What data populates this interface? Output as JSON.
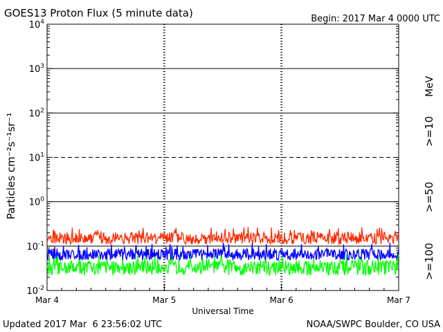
{
  "header": {
    "title": "GOES13 Proton Flux (5 minute data)",
    "begin": "Begin: 2017 Mar 4 0000 UTC"
  },
  "footer": {
    "updated": "Updated 2017 Mar  6 23:56:02 UTC",
    "credit": "NOAA/SWPC Boulder, CO USA"
  },
  "chart_data": {
    "type": "line",
    "title": "GOES13 Proton Flux (5 minute data)",
    "xlabel": "Universal Time",
    "ylabel": "Particles cm⁻²s⁻¹sr⁻¹",
    "y_scale": "log",
    "ylim": [
      0.01,
      10000
    ],
    "x_ticks": [
      "Mar 4",
      "Mar 5",
      "Mar 6",
      "Mar 7"
    ],
    "y_ticks": [
      {
        "base": "10",
        "exp": "4"
      },
      {
        "base": "10",
        "exp": "3"
      },
      {
        "base": "10",
        "exp": "2"
      },
      {
        "base": "10",
        "exp": "1"
      },
      {
        "base": "10",
        "exp": "0"
      },
      {
        "base": "10",
        "exp": "-1"
      },
      {
        "base": "10",
        "exp": "-2"
      }
    ],
    "thresholds": [
      {
        "value": 1000,
        "style": "solid"
      },
      {
        "value": 100,
        "style": "solid"
      },
      {
        "value": 10,
        "style": "dashed"
      },
      {
        "value": 1,
        "style": "solid"
      },
      {
        "value": 0.1,
        "style": "solid"
      }
    ],
    "unit_label": "MeV",
    "series": [
      {
        "name": ">=10",
        "color": "#ff2a00",
        "baseline": 0.15,
        "spread": [
          0.11,
          0.28
        ]
      },
      {
        "name": ">=50",
        "color": "#0000ff",
        "baseline": 0.065,
        "spread": [
          0.048,
          0.12
        ]
      },
      {
        "name": ">=100",
        "color": "#00ff00",
        "baseline": 0.035,
        "spread": [
          0.022,
          0.065
        ]
      }
    ]
  }
}
